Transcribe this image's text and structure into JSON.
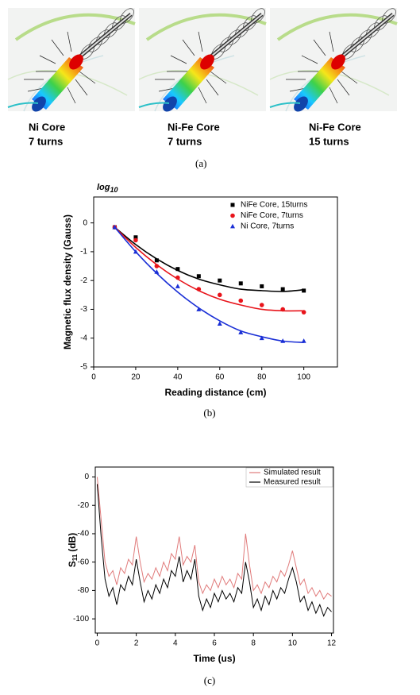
{
  "figure_a": {
    "labels": [
      [
        "Ni Core",
        "7 turns"
      ],
      [
        "Ni-Fe Core",
        "7 turns"
      ],
      [
        "Ni-Fe Core",
        "15 turns"
      ]
    ],
    "caption": "(a)"
  },
  "chart_data": [
    {
      "type": "scatter",
      "caption": "(b)",
      "annotation": "log",
      "annotation_sub": "10",
      "xlabel": "Reading distance (cm)",
      "ylabel": "Magnetic flux density (Gauss)",
      "xlim": [
        0,
        116
      ],
      "ylim": [
        -5,
        0.9
      ],
      "xticks": [
        0,
        20,
        40,
        60,
        80,
        100
      ],
      "yticks": [
        0,
        -1,
        -2,
        -3,
        -4,
        -5
      ],
      "legend": "upper right",
      "x": [
        10,
        20,
        30,
        40,
        50,
        60,
        70,
        80,
        90,
        100
      ],
      "series": [
        {
          "name": "NiFe Core, 15turns",
          "color": "#000000",
          "marker": "square",
          "values": [
            -0.15,
            -0.5,
            -1.3,
            -1.6,
            -1.85,
            -2.0,
            -2.1,
            -2.2,
            -2.3,
            -2.35
          ],
          "fit": [
            -0.15,
            -0.75,
            -1.25,
            -1.65,
            -1.95,
            -2.15,
            -2.3,
            -2.35,
            -2.38,
            -2.32
          ]
        },
        {
          "name": "NiFe Core, 7turns",
          "color": "#e8141b",
          "marker": "circle",
          "values": [
            -0.15,
            -0.6,
            -1.5,
            -1.9,
            -2.3,
            -2.5,
            -2.7,
            -2.85,
            -3.0,
            -3.1
          ],
          "fit": [
            -0.15,
            -0.85,
            -1.45,
            -1.95,
            -2.35,
            -2.65,
            -2.85,
            -3.0,
            -3.05,
            -3.05
          ]
        },
        {
          "name": "Ni Core, 7turns",
          "color": "#1a2fd6",
          "marker": "triangle",
          "values": [
            -0.15,
            -1.0,
            -1.7,
            -2.2,
            -3.0,
            -3.5,
            -3.8,
            -4.0,
            -4.1,
            -4.1
          ],
          "fit": [
            -0.15,
            -1.0,
            -1.75,
            -2.4,
            -2.95,
            -3.4,
            -3.75,
            -3.95,
            -4.1,
            -4.15
          ]
        }
      ]
    },
    {
      "type": "line",
      "caption": "(c)",
      "xlabel": "Time (us)",
      "ylabel": "S",
      "ylabel_sub": "11",
      "ylabel_unit": "(dB)",
      "xlim": [
        -0.1,
        12.1
      ],
      "ylim": [
        -110,
        7
      ],
      "xticks": [
        0,
        2,
        4,
        6,
        8,
        10,
        12
      ],
      "yticks": [
        0,
        -20,
        -40,
        -60,
        -80,
        -100
      ],
      "legend": "upper right",
      "x": [
        0,
        0.2,
        0.4,
        0.6,
        0.8,
        1,
        1.2,
        1.4,
        1.6,
        1.8,
        2,
        2.2,
        2.4,
        2.6,
        2.8,
        3,
        3.2,
        3.4,
        3.6,
        3.8,
        4,
        4.2,
        4.4,
        4.6,
        4.8,
        5,
        5.2,
        5.4,
        5.6,
        5.8,
        6,
        6.2,
        6.4,
        6.6,
        6.8,
        7,
        7.2,
        7.4,
        7.6,
        7.8,
        8,
        8.2,
        8.4,
        8.6,
        8.8,
        9,
        9.2,
        9.4,
        9.6,
        9.8,
        10,
        10.2,
        10.4,
        10.6,
        10.8,
        11,
        11.2,
        11.4,
        11.6,
        11.8,
        12
      ],
      "series": [
        {
          "name": "Simulated result",
          "color": "#e07a7a",
          "values": [
            0,
            -30,
            -60,
            -70,
            -66,
            -76,
            -64,
            -68,
            -58,
            -62,
            -42,
            -60,
            -74,
            -68,
            -72,
            -64,
            -70,
            -60,
            -66,
            -54,
            -58,
            -42,
            -62,
            -56,
            -60,
            -48,
            -74,
            -82,
            -76,
            -80,
            -72,
            -78,
            -70,
            -76,
            -72,
            -78,
            -68,
            -72,
            -40,
            -62,
            -80,
            -76,
            -82,
            -74,
            -78,
            -70,
            -74,
            -66,
            -70,
            -62,
            -52,
            -64,
            -76,
            -72,
            -82,
            -78,
            -84,
            -80,
            -86,
            -82,
            -84
          ]
        },
        {
          "name": "Measured result",
          "color": "#000000",
          "values": [
            -5,
            -42,
            -72,
            -84,
            -78,
            -90,
            -76,
            -80,
            -70,
            -76,
            -58,
            -74,
            -88,
            -80,
            -86,
            -76,
            -82,
            -72,
            -78,
            -66,
            -70,
            -56,
            -74,
            -66,
            -72,
            -58,
            -84,
            -94,
            -86,
            -92,
            -82,
            -88,
            -80,
            -86,
            -82,
            -88,
            -78,
            -82,
            -60,
            -74,
            -92,
            -86,
            -94,
            -84,
            -90,
            -80,
            -86,
            -78,
            -82,
            -72,
            -64,
            -74,
            -88,
            -84,
            -94,
            -88,
            -96,
            -90,
            -98,
            -92,
            -95
          ]
        }
      ]
    }
  ]
}
